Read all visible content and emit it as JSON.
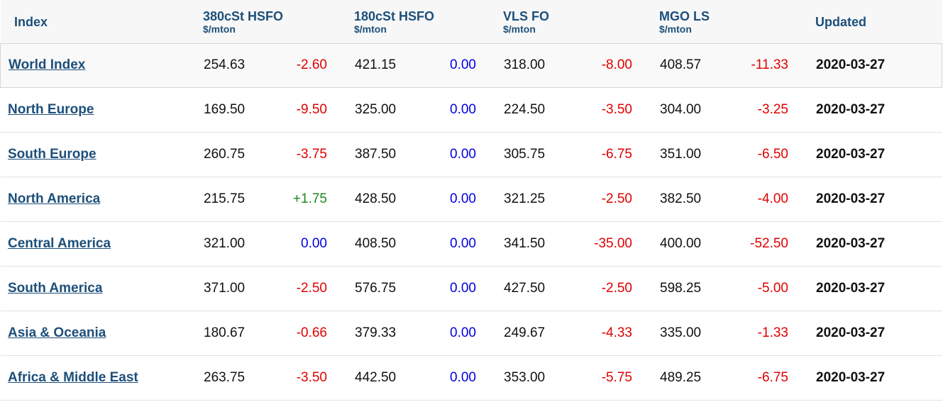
{
  "header": {
    "index": "Index",
    "col1_name": "380cSt HSFO",
    "col1_unit": "$/mton",
    "col2_name": "180cSt HSFO",
    "col2_unit": "$/mton",
    "col3_name": "VLS FO",
    "col3_unit": "$/mton",
    "col4_name": "MGO LS",
    "col4_unit": "$/mton",
    "updated": "Updated"
  },
  "colors": {
    "header_text": "#1d4f7a",
    "negative": "#e00000",
    "positive": "#1a8a1a",
    "zero": "#0000e0"
  },
  "rows": [
    {
      "region": "World Index",
      "hsfo380": "254.63",
      "hsfo380_chg": "-2.60",
      "hsfo180": "421.15",
      "hsfo180_chg": "0.00",
      "vlsfo": "318.00",
      "vlsfo_chg": "-8.00",
      "mgo": "408.57",
      "mgo_chg": "-11.33",
      "updated": "2020-03-27"
    },
    {
      "region": "North Europe",
      "hsfo380": "169.50",
      "hsfo380_chg": "-9.50",
      "hsfo180": "325.00",
      "hsfo180_chg": "0.00",
      "vlsfo": "224.50",
      "vlsfo_chg": "-3.50",
      "mgo": "304.00",
      "mgo_chg": "-3.25",
      "updated": "2020-03-27"
    },
    {
      "region": "South Europe",
      "hsfo380": "260.75",
      "hsfo380_chg": "-3.75",
      "hsfo180": "387.50",
      "hsfo180_chg": "0.00",
      "vlsfo": "305.75",
      "vlsfo_chg": "-6.75",
      "mgo": "351.00",
      "mgo_chg": "-6.50",
      "updated": "2020-03-27"
    },
    {
      "region": "North America",
      "hsfo380": "215.75",
      "hsfo380_chg": "+1.75",
      "hsfo180": "428.50",
      "hsfo180_chg": "0.00",
      "vlsfo": "321.25",
      "vlsfo_chg": "-2.50",
      "mgo": "382.50",
      "mgo_chg": "-4.00",
      "updated": "2020-03-27"
    },
    {
      "region": "Central America",
      "hsfo380": "321.00",
      "hsfo380_chg": "0.00",
      "hsfo180": "408.50",
      "hsfo180_chg": "0.00",
      "vlsfo": "341.50",
      "vlsfo_chg": "-35.00",
      "mgo": "400.00",
      "mgo_chg": "-52.50",
      "updated": "2020-03-27"
    },
    {
      "region": "South America",
      "hsfo380": "371.00",
      "hsfo380_chg": "-2.50",
      "hsfo180": "576.75",
      "hsfo180_chg": "0.00",
      "vlsfo": "427.50",
      "vlsfo_chg": "-2.50",
      "mgo": "598.25",
      "mgo_chg": "-5.00",
      "updated": "2020-03-27"
    },
    {
      "region": "Asia & Oceania",
      "hsfo380": "180.67",
      "hsfo380_chg": "-0.66",
      "hsfo180": "379.33",
      "hsfo180_chg": "0.00",
      "vlsfo": "249.67",
      "vlsfo_chg": "-4.33",
      "mgo": "335.00",
      "mgo_chg": "-1.33",
      "updated": "2020-03-27"
    },
    {
      "region": "Africa & Middle East",
      "hsfo380": "263.75",
      "hsfo380_chg": "-3.50",
      "hsfo180": "442.50",
      "hsfo180_chg": "0.00",
      "vlsfo": "353.00",
      "vlsfo_chg": "-5.75",
      "mgo": "489.25",
      "mgo_chg": "-6.75",
      "updated": "2020-03-27"
    }
  ]
}
